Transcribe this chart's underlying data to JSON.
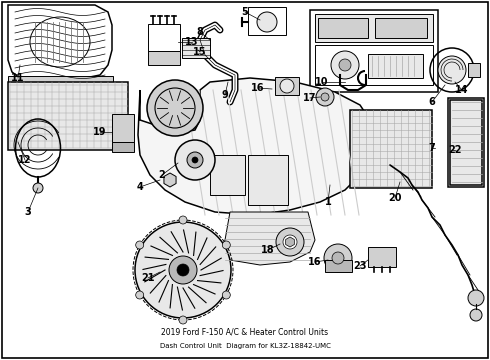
{
  "title": "2019 Ford F-150 A/C & Heater Control Units",
  "subtitle": "Dash Control Unit",
  "part_number": "KL3Z-18842-UMC",
  "background_color": "#ffffff",
  "fig_width": 4.9,
  "fig_height": 3.6,
  "dpi": 100,
  "label_fs": 7.0,
  "border_lw": 1.2
}
